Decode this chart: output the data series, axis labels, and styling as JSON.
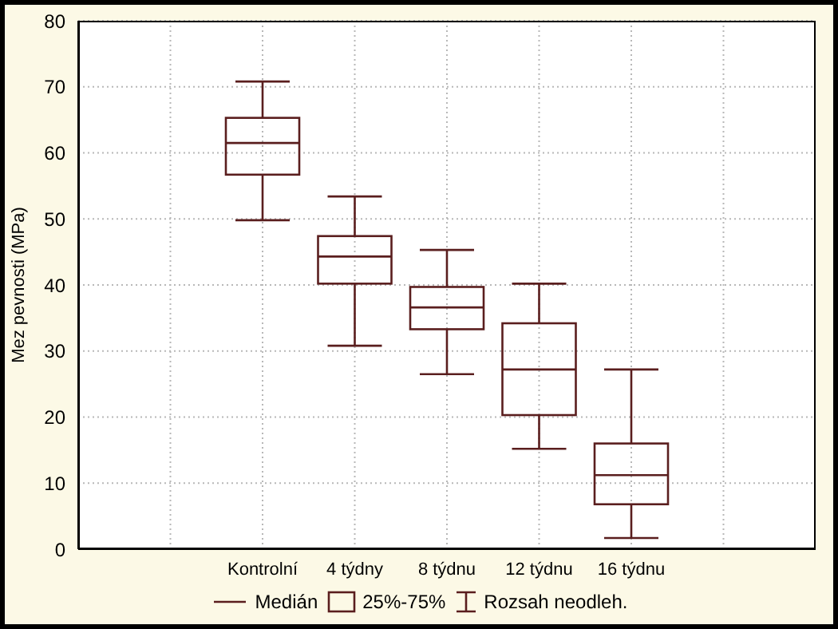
{
  "chart_data": {
    "type": "box",
    "ylabel": "Mez pevnosti (MPa)",
    "categories": [
      null,
      null,
      "Kontrolní",
      "4 týdny",
      "8 týdnu",
      "12 týdnu",
      "16 týdnu",
      null,
      null
    ],
    "boxes": [
      null,
      null,
      {
        "low": 49.8,
        "q1": 56.7,
        "median": 61.5,
        "q3": 65.3,
        "high": 70.8
      },
      {
        "low": 30.8,
        "q1": 40.2,
        "median": 44.3,
        "q3": 47.4,
        "high": 53.4
      },
      {
        "low": 26.5,
        "q1": 33.3,
        "median": 36.6,
        "q3": 39.7,
        "high": 45.3
      },
      {
        "low": 15.2,
        "q1": 20.3,
        "median": 27.2,
        "q3": 34.2,
        "high": 40.2
      },
      {
        "low": 1.7,
        "q1": 6.8,
        "median": 11.2,
        "q3": 16,
        "high": 27.2
      },
      null,
      null
    ],
    "color": "#5a1e1e",
    "ylim": [
      0,
      80
    ],
    "yticks": [
      0,
      10,
      20,
      30,
      40,
      50,
      60,
      70,
      80
    ],
    "grid": true,
    "annotations": [
      "Medián",
      "25%-75%",
      "Rozsah neodleh."
    ]
  }
}
